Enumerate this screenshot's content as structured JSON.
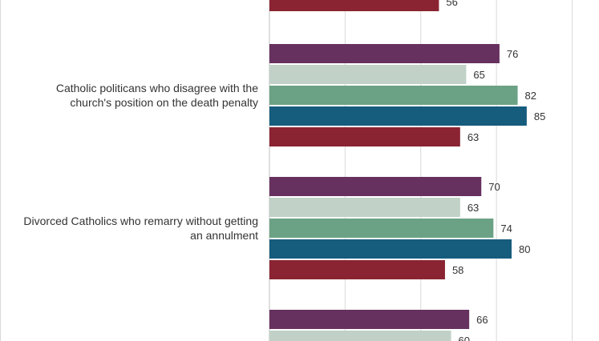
{
  "chart_data": {
    "type": "bar",
    "orientation": "horizontal",
    "grid": true,
    "groups": [
      {
        "label_lines": [],
        "values": [
          56
        ],
        "colors": [
          "#8a2432"
        ]
      },
      {
        "label_lines": [
          "Catholic politicans who disagree with the",
          "church's position on the death penalty"
        ],
        "values": [
          76,
          65,
          82,
          85,
          63
        ],
        "colors": [
          "#66305f",
          "#c1d1c7",
          "#6ba285",
          "#165c7d",
          "#8a2432"
        ]
      },
      {
        "label_lines": [
          "Divorced Catholics who remarry without getting",
          "an annulment"
        ],
        "values": [
          70,
          63,
          74,
          80,
          58
        ],
        "colors": [
          "#66305f",
          "#c1d1c7",
          "#6ba285",
          "#165c7d",
          "#8a2432"
        ]
      },
      {
        "label_lines": [],
        "values": [
          66,
          60
        ],
        "colors": [
          "#66305f",
          "#c1d1c7"
        ]
      }
    ]
  }
}
